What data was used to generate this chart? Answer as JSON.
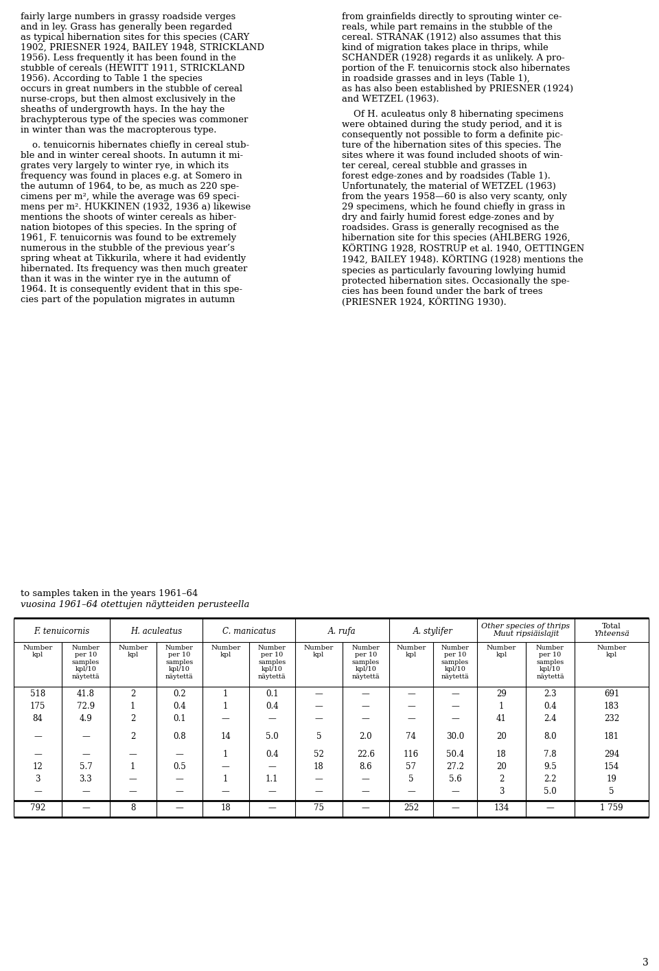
{
  "bg_color": "#ffffff",
  "text_color": "#000000",
  "page_number": "3",
  "caption_line1": "to samples taken in the years 1961–64",
  "caption_line2": "vuosina 1961–64 otettujen näytteiden perusteella",
  "col_headers": [
    "F. tenuicornis",
    "H. aculeatus",
    "C. manicatus",
    "A. rufa",
    "A. stylifer",
    "Other species of thrips\nMuut ripsiäislajit",
    "Total\nYhteensä"
  ],
  "sub_headers": [
    [
      "Number\nkpl",
      "Number\nper 10\nsamples\nkpl/10\nnäytettä"
    ],
    [
      "Number\nkpl",
      "Number\nper 10\nsamples\nkpl/10\nnäytettä"
    ],
    [
      "Number\nkpl",
      "Number\nper 10\nsamples\nkpl/10\nnäytettä"
    ],
    [
      "Number\nkpl",
      "Number\nper 10\nsamples\nkpl/10\nnäytettä"
    ],
    [
      "Number\nkpl",
      "Number\nper 10\nsamples\nkpl/10\nnäytettä"
    ],
    [
      "Number\nkpl",
      "Number\nper 10\nsamples\nkpl/10\nnäytettä"
    ],
    [
      "Number\nkpl"
    ]
  ],
  "rows": [
    [
      "518",
      "41.8",
      "2",
      "0.2",
      "1",
      "0.1",
      "—",
      "—",
      "—",
      "—",
      "29",
      "2.3",
      "691"
    ],
    [
      "175",
      "72.9",
      "1",
      "0.4",
      "1",
      "0.4",
      "—",
      "—",
      "—",
      "—",
      "1",
      "0.4",
      "183"
    ],
    [
      "84",
      "4.9",
      "2",
      "0.1",
      "—",
      "—",
      "—",
      "—",
      "—",
      "—",
      "41",
      "2.4",
      "232"
    ],
    [
      "",
      "",
      "",
      "",
      "",
      "",
      "",
      "",
      "",
      "",
      "",
      "",
      ""
    ],
    [
      "—",
      "—",
      "2",
      "0.8",
      "14",
      "5.0",
      "5",
      "2.0",
      "74",
      "30.0",
      "20",
      "8.0",
      "181"
    ],
    [
      "",
      "",
      "",
      "",
      "",
      "",
      "",
      "",
      "",
      "",
      "",
      "",
      ""
    ],
    [
      "—",
      "—",
      "—",
      "—",
      "1",
      "0.4",
      "52",
      "22.6",
      "116",
      "50.4",
      "18",
      "7.8",
      "294"
    ],
    [
      "12",
      "5.7",
      "1",
      "0.5",
      "—",
      "—",
      "18",
      "8.6",
      "57",
      "27.2",
      "20",
      "9.5",
      "154"
    ],
    [
      "3",
      "3.3",
      "—",
      "—",
      "1",
      "1.1",
      "—",
      "—",
      "5",
      "5.6",
      "2",
      "2.2",
      "19"
    ],
    [
      "—",
      "—",
      "—",
      "—",
      "—",
      "—",
      "—",
      "—",
      "—",
      "—",
      "3",
      "5.0",
      "5"
    ]
  ],
  "total_row": [
    "792",
    "—",
    "8",
    "—",
    "18",
    "—",
    "75",
    "—",
    "252",
    "—",
    "134",
    "—··",
    "—",
    "1 759"
  ],
  "left_text_paragraphs": [
    "fairly large numbers in grassy roadside verges\nand in ley. Grass has generally been regarded\nas typical hibernation sites for this species (CARY\n1902, PRIESNER 1924, BAILEY 1948, STRICKLAND\n1956). Less frequently it has been found in the\nstubble of cereals (HEWITT 1911, STRICKLAND\n1956). According to Table 1 the species\noccurs in great numbers in the stubble of cereal\nnurse-crops, but then almost exclusively in the\nsheaths of undergrowth hays. In the hay the\nbrachypterous type of the species was commoner\nin winter than was the macropterous type.",
    "    F. tenuicornis hibernates chiefly in cereal stub-\nble and in winter cereal shoots. In autumn it mi-\ngrates very largely to winter rye, in which its\nfrequency was found in places e.g. at Somero in\nthe autumn of 1964, to be, as much as 220 spe-\ncimens per m², while the average was 69 speci-\nmens per m². HUKKINEN (1932, 1936 a) likewise\nmentions the shoots of winter cereals as hiber-\nnation biotopes of this species. In the spring of\n1961, F. tenuicornis was found to be extremely\nnumerous in the stubble of the previous year’s\nspring wheat at Tikkurila, where it had evidently\nhibernated. Its frequency was then much greater\nthan it was in the winter rye in the autumn of\n1964. It is consequently evident that in this spe-\ncies part of the population migrates in autumn"
  ],
  "right_text_paragraphs": [
    "from grainfields directly to sprouting winter ce-\nreals, while part remains in the stubble of the\ncereal. STRANAK (1912) also assumes that this\nkind of migration takes place in thrips, while\nSCHANDER (1928) regards it as unlikely. A pro-\nportion of the F. tenuicornis stock also hibernates\nin roadside grasses and in leys (Table 1),\nas has also been established by PRIESNER (1924)\nand WETZEL (1963).",
    "    Of H. aculeatus only 8 hibernating specimens\nwere obtained during the study period, and it is\nconsequently not possible to form a definite pic-\nture of the hibernation sites of this species. The\nsites where it was found included shoots of win-\nter cereal, cereal stubble and grasses in\nforest edge-zones and by roadsides (Table 1).\nUnfortunately, the material of WETZEL (1963)\nfrom the years 1958—60 is also very scanty, only\n29 specimens, which he found chiefly in grass in\ndry and fairly humid forest edge-zones and by\nroadsides. Grass is generally recognised as the\nhibernation site for this species (AHLBERG 1926,\nKÖRTING 1928, ROSTRUP et al. 1940, OETTINGEN\n1942, BAILEY 1948). KÖRTING (1928) mentions the\nspecies as particularly favouring lowlying humid\nprotected hibernation sites. Occasionally the spe-\ncies has been found under the bark of trees\n(PRIESNER 1924, KÖRTING 1930)."
  ]
}
